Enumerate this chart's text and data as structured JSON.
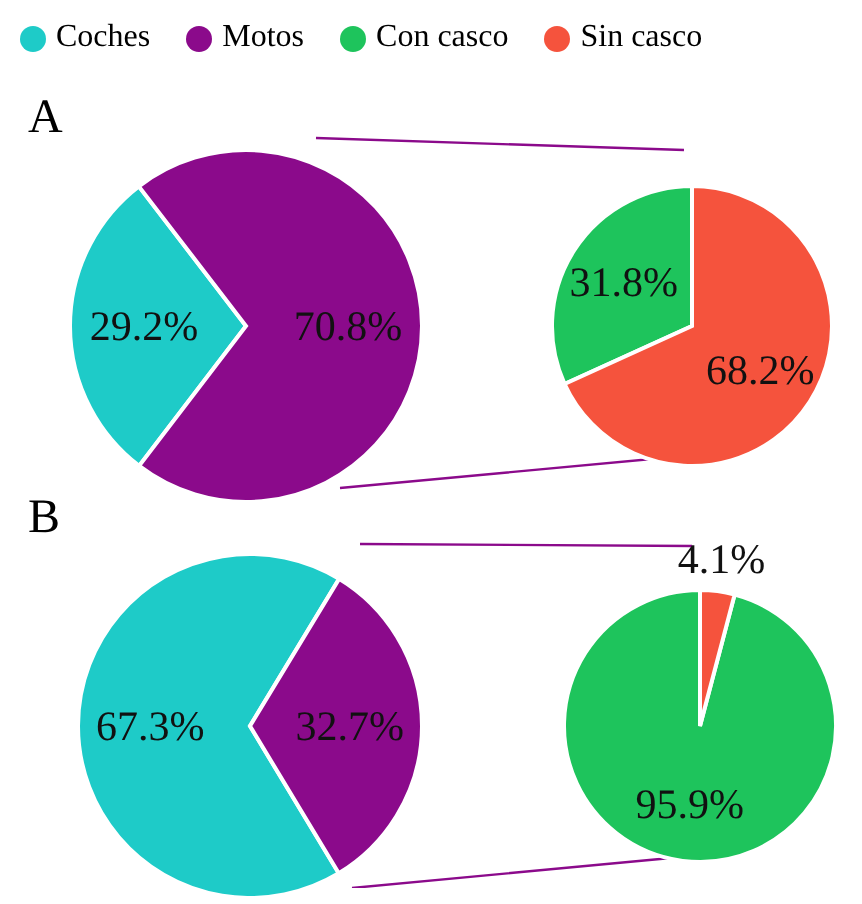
{
  "chart_data": [
    {
      "type": "pie",
      "title": "A",
      "categories": [
        "Coches",
        "Motos"
      ],
      "values": [
        29.2,
        70.8
      ],
      "colors": [
        "#1ecbc8",
        "#8b0a8b"
      ],
      "value_labels": [
        "29.2%",
        "70.8%"
      ],
      "legend": "top"
    },
    {
      "type": "pie",
      "categories": [
        "Con casco",
        "Sin casco"
      ],
      "values": [
        31.8,
        68.2
      ],
      "colors": [
        "#1ec45c",
        "#f5533d"
      ],
      "value_labels": [
        "31.8%",
        "68.2%"
      ],
      "legend": "top"
    },
    {
      "type": "pie",
      "title": "B",
      "categories": [
        null,
        null
      ],
      "values": [
        67.3,
        32.7
      ],
      "colors": [
        "#1ecbc8",
        "#8b0a8b"
      ],
      "value_labels": [
        "67.3%",
        "32.7%"
      ]
    },
    {
      "type": "pie",
      "categories": [
        null,
        null
      ],
      "values": [
        95.9,
        4.1
      ],
      "colors": [
        "#1ec45c",
        "#f5533d"
      ],
      "value_labels": [
        "95.9%",
        "4.1%"
      ]
    }
  ]
}
